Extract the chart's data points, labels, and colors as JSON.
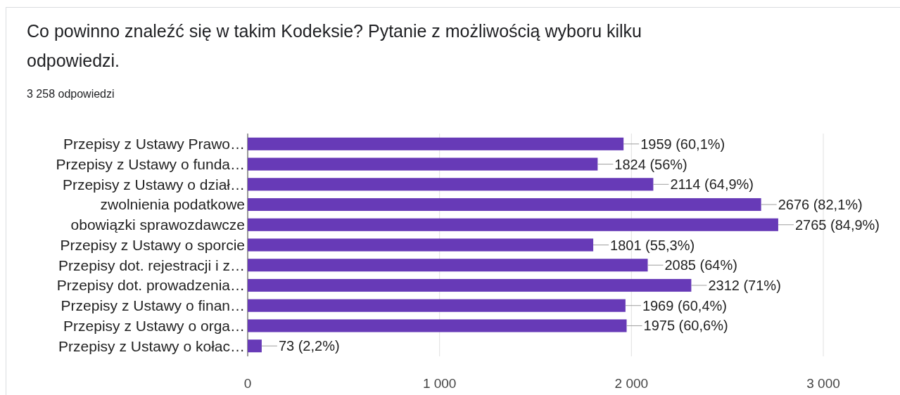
{
  "chart_data": {
    "type": "bar",
    "orientation": "horizontal",
    "title": "Co powinno znaleźć się w takim Kodeksie? Pytanie z możliwością wyboru kilku odpowiedzi.",
    "subtitle": "3 258 odpowiedzi",
    "categories": [
      "Przepisy z Ustawy Prawo…",
      "Przepisy z Ustawy o funda…",
      "Przepisy z Ustawy o dział…",
      "zwolnienia podatkowe",
      "obowiązki sprawozdawcze",
      "Przepisy z Ustawy o sporcie",
      "Przepisy dot. rejestracji i z…",
      "Przepisy dot. prowadzenia…",
      "Przepisy z Ustawy o finan…",
      "Przepisy z Ustawy o orga…",
      "Przepisy z Ustawy o kołac…"
    ],
    "values": [
      1959,
      1824,
      2114,
      2676,
      2765,
      1801,
      2085,
      2312,
      1969,
      1975,
      73
    ],
    "value_labels": [
      "1959 (60,1%)",
      "1824 (56%)",
      "2114 (64,9%)",
      "2676 (82,1%)",
      "2765 (84,9%)",
      "1801 (55,3%)",
      "2085 (64%)",
      "2312 (71%)",
      "1969 (60,4%)",
      "1975 (60,6%)",
      "73 (2,2%)"
    ],
    "color": "#673ab7",
    "xlim": [
      0,
      3000
    ],
    "xticks": [
      0,
      {
        "value": 1000,
        "label": "1 000"
      },
      {
        "value": 2000,
        "label": "2 000"
      },
      {
        "value": 3000,
        "label": "3 000"
      }
    ],
    "grid": "x"
  }
}
